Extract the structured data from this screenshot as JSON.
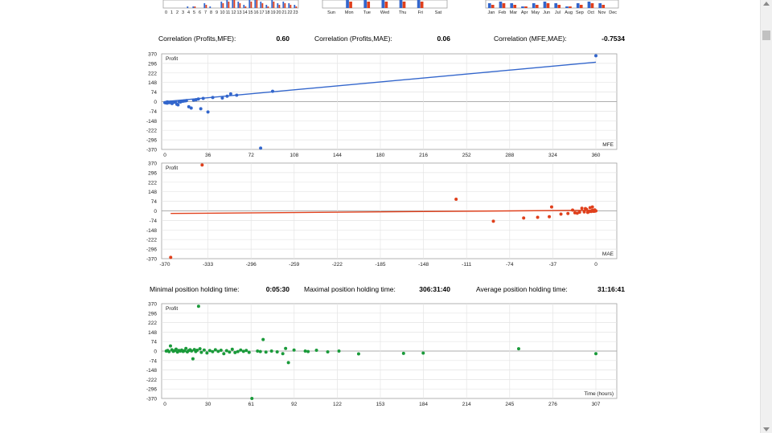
{
  "correlations": {
    "profits_mfe": {
      "label": "Correlation (Profits,MFE):",
      "value": "0.60"
    },
    "profits_mae": {
      "label": "Correlation (Profits,MAE):",
      "value": "0.06"
    },
    "mfe_mae": {
      "label": "Correlation (MFE,MAE):",
      "value": "-0.7534"
    }
  },
  "holding": {
    "minimal": {
      "label": "Minimal position holding time:",
      "value": "0:05:30"
    },
    "maximal": {
      "label": "Maximal position holding time:",
      "value": "306:31:40"
    },
    "average": {
      "label": "Average position holding time:",
      "value": "31:16:41"
    }
  },
  "colors": {
    "mfe": "#3366cc",
    "mae": "#e0401c",
    "time": "#1a9a3a",
    "grid": "#e4e4e4",
    "axis": "#a0a0a0"
  },
  "chart_data": [
    {
      "type": "bar",
      "title": "",
      "categories": [
        "0",
        "1",
        "2",
        "3",
        "4",
        "5",
        "6",
        "7",
        "8",
        "9",
        "10",
        "11",
        "12",
        "13",
        "14",
        "15",
        "16",
        "17",
        "18",
        "19",
        "20",
        "21",
        "22",
        "23"
      ],
      "series": [
        {
          "values": [
            0,
            0,
            0,
            0,
            1,
            1,
            0,
            3,
            1,
            0,
            4,
            5,
            6,
            4,
            2,
            5,
            6,
            4,
            2,
            5,
            3,
            4,
            3,
            2
          ]
        },
        {
          "values": [
            0,
            0,
            0,
            0,
            0,
            1,
            0,
            2,
            0,
            0,
            3,
            4,
            5,
            3,
            1,
            4,
            5,
            3,
            1,
            4,
            2,
            3,
            2,
            1
          ]
        }
      ],
      "note_visible": "cropped at top"
    },
    {
      "type": "bar",
      "categories": [
        "Sun",
        "Mon",
        "Tue",
        "Wed",
        "Thu",
        "Fri",
        "Sat"
      ],
      "series": [
        {
          "values": [
            0,
            5,
            5,
            5,
            5,
            5,
            0
          ]
        },
        {
          "values": [
            0,
            4,
            4,
            4,
            4,
            4,
            0
          ]
        }
      ]
    },
    {
      "type": "bar",
      "categories": [
        "Jan",
        "Feb",
        "Mar",
        "Apr",
        "May",
        "Jun",
        "Jul",
        "Aug",
        "Sep",
        "Oct",
        "Nov",
        "Dec"
      ],
      "series": [
        {
          "values": [
            3,
            4,
            3,
            1,
            3,
            4,
            3,
            1,
            3,
            4,
            3,
            0
          ]
        },
        {
          "values": [
            2,
            3,
            2,
            1,
            2,
            3,
            2,
            1,
            2,
            3,
            2,
            0
          ]
        }
      ]
    },
    {
      "type": "scatter",
      "ylabel": "Profit",
      "xlabel": "MFE",
      "xlim": [
        0,
        360
      ],
      "ylim": [
        -370,
        370
      ],
      "xticks": [
        "0",
        "36",
        "72",
        "108",
        "144",
        "180",
        "216",
        "252",
        "288",
        "324",
        "360"
      ],
      "yticks": [
        "370",
        "296",
        "222",
        "148",
        "74",
        "0",
        "-74",
        "-148",
        "-222",
        "-296",
        "-370"
      ],
      "trendline": {
        "x": [
          0,
          360
        ],
        "y": [
          0,
          305
        ]
      },
      "points": [
        [
          0,
          -8
        ],
        [
          1,
          -10
        ],
        [
          2,
          -12
        ],
        [
          3,
          -5
        ],
        [
          4,
          -8
        ],
        [
          5,
          -3
        ],
        [
          6,
          -15
        ],
        [
          2,
          -2
        ],
        [
          7,
          -6
        ],
        [
          8,
          -4
        ],
        [
          9,
          -2
        ],
        [
          10,
          -20
        ],
        [
          11,
          -25
        ],
        [
          12,
          -1
        ],
        [
          13,
          -3
        ],
        [
          14,
          2
        ],
        [
          15,
          3
        ],
        [
          16,
          5
        ],
        [
          17,
          6
        ],
        [
          18,
          8
        ],
        [
          20,
          -40
        ],
        [
          22,
          -50
        ],
        [
          24,
          12
        ],
        [
          26,
          15
        ],
        [
          28,
          20
        ],
        [
          30,
          -55
        ],
        [
          32,
          25
        ],
        [
          36,
          -80
        ],
        [
          40,
          32
        ],
        [
          48,
          28
        ],
        [
          52,
          42
        ],
        [
          55,
          60
        ],
        [
          60,
          50
        ],
        [
          80,
          -360
        ],
        [
          90,
          80
        ],
        [
          360,
          355
        ]
      ]
    },
    {
      "type": "scatter",
      "ylabel": "Profit",
      "xlabel": "MAE",
      "xlim": [
        -370,
        0
      ],
      "ylim": [
        -370,
        370
      ],
      "xticks": [
        "-370",
        "-333",
        "-296",
        "-259",
        "-222",
        "-185",
        "-148",
        "-111",
        "-74",
        "-37",
        "0"
      ],
      "yticks": [
        "370",
        "296",
        "222",
        "148",
        "74",
        "0",
        "-74",
        "-148",
        "-222",
        "-296",
        "-370"
      ],
      "trendline": {
        "x": [
          -365,
          0
        ],
        "y": [
          -20,
          5
        ]
      },
      "points": [
        [
          -365,
          -360
        ],
        [
          -338,
          355
        ],
        [
          -120,
          90
        ],
        [
          -88,
          -80
        ],
        [
          -62,
          -55
        ],
        [
          -50,
          -50
        ],
        [
          -40,
          -45
        ],
        [
          -38,
          30
        ],
        [
          -30,
          -25
        ],
        [
          -24,
          -20
        ],
        [
          -18,
          -15
        ],
        [
          -14,
          -10
        ],
        [
          -12,
          20
        ],
        [
          -10,
          -8
        ],
        [
          -8,
          12
        ],
        [
          -6,
          -6
        ],
        [
          -5,
          25
        ],
        [
          -4,
          -5
        ],
        [
          -3,
          30
        ],
        [
          -2,
          -3
        ],
        [
          -1,
          8
        ],
        [
          0,
          0
        ],
        [
          -1,
          -2
        ],
        [
          -3,
          5
        ],
        [
          -7,
          -12
        ],
        [
          -9,
          18
        ],
        [
          -16,
          -18
        ],
        [
          -20,
          6
        ]
      ]
    },
    {
      "type": "scatter",
      "ylabel": "Profit",
      "xlabel": "Time (hours)",
      "xlim": [
        0,
        307
      ],
      "ylim": [
        -370,
        370
      ],
      "xticks": [
        "0",
        "30",
        "61",
        "92",
        "122",
        "153",
        "184",
        "214",
        "245",
        "276",
        "307"
      ],
      "yticks": [
        "370",
        "296",
        "222",
        "148",
        "74",
        "0",
        "-74",
        "-148",
        "-222",
        "-296",
        "-370"
      ],
      "points": [
        [
          1,
          0
        ],
        [
          2,
          5
        ],
        [
          3,
          -5
        ],
        [
          4,
          40
        ],
        [
          5,
          10
        ],
        [
          6,
          -2
        ],
        [
          7,
          3
        ],
        [
          8,
          15
        ],
        [
          9,
          -8
        ],
        [
          10,
          5
        ],
        [
          11,
          0
        ],
        [
          12,
          8
        ],
        [
          13,
          -3
        ],
        [
          14,
          2
        ],
        [
          15,
          20
        ],
        [
          16,
          -6
        ],
        [
          17,
          4
        ],
        [
          18,
          10
        ],
        [
          19,
          1
        ],
        [
          20,
          -60
        ],
        [
          21,
          12
        ],
        [
          22,
          -4
        ],
        [
          23,
          6
        ],
        [
          24,
          350
        ],
        [
          25,
          18
        ],
        [
          26,
          -10
        ],
        [
          28,
          8
        ],
        [
          30,
          -15
        ],
        [
          32,
          4
        ],
        [
          34,
          -5
        ],
        [
          36,
          10
        ],
        [
          38,
          -2
        ],
        [
          40,
          6
        ],
        [
          42,
          -20
        ],
        [
          44,
          3
        ],
        [
          46,
          -8
        ],
        [
          48,
          14
        ],
        [
          50,
          -12
        ],
        [
          52,
          -4
        ],
        [
          54,
          8
        ],
        [
          56,
          -2
        ],
        [
          58,
          5
        ],
        [
          60,
          -10
        ],
        [
          62,
          -370
        ],
        [
          66,
          0
        ],
        [
          68,
          -4
        ],
        [
          70,
          90
        ],
        [
          72,
          -8
        ],
        [
          76,
          0
        ],
        [
          80,
          -6
        ],
        [
          84,
          -20
        ],
        [
          86,
          20
        ],
        [
          88,
          -90
        ],
        [
          92,
          8
        ],
        [
          100,
          0
        ],
        [
          102,
          -4
        ],
        [
          108,
          6
        ],
        [
          116,
          -6
        ],
        [
          124,
          0
        ],
        [
          138,
          -22
        ],
        [
          170,
          -18
        ],
        [
          184,
          -16
        ],
        [
          252,
          18
        ],
        [
          307,
          -20
        ]
      ]
    }
  ]
}
